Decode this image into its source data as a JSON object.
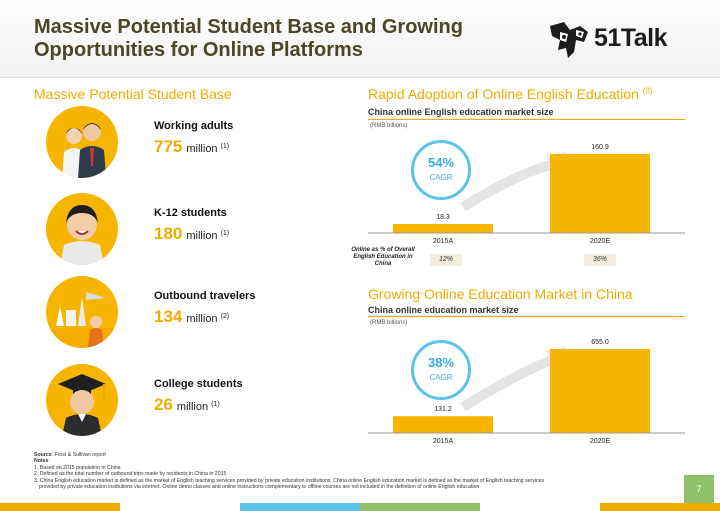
{
  "slide": {
    "title_line1": "Massive Potential Student Base and Growing",
    "title_line2": "Opportunities for Online Platforms",
    "brand": "51Talk",
    "page_number": "7"
  },
  "left": {
    "heading": "Massive Potential Student Base",
    "segments": [
      {
        "name": "Working adults",
        "value": "775",
        "unit": "million",
        "note": "(1)"
      },
      {
        "name": "K-12 students",
        "value": "180",
        "unit": "million",
        "note": "(1)"
      },
      {
        "name": "Outbound travelers",
        "value": "134",
        "unit": "million",
        "note": "(2)"
      },
      {
        "name": "College students",
        "value": "26",
        "unit": "million",
        "note": "(1)"
      }
    ]
  },
  "chart1": {
    "heading": "Rapid Adoption of Online English Education",
    "heading_note": "(3)",
    "subtitle": "China online English education market size",
    "unit": "(RMB billions)",
    "cagr_value": "54%",
    "cagr_label": "CAGR",
    "share_label": "Online as % of Overall English Education in China",
    "share_values": [
      "12%",
      "36%"
    ]
  },
  "chart2": {
    "heading": "Growing Online Education Market in China",
    "subtitle": "China online education market size",
    "unit": "(RMB billions)",
    "cagr_value": "38%",
    "cagr_label": "CAGR"
  },
  "chart_data": [
    {
      "type": "bar",
      "title": "China online English education market size",
      "ylabel": "(RMB billions)",
      "categories": [
        "2015A",
        "2020E"
      ],
      "values": [
        18.3,
        160.9
      ],
      "data_labels": [
        "18.3",
        "160.9"
      ],
      "ylim": [
        0,
        160.9
      ]
    },
    {
      "type": "bar",
      "title": "China online education market size",
      "ylabel": "(RMB billions)",
      "categories": [
        "2015A",
        "2020E"
      ],
      "values": [
        131.2,
        655.0
      ],
      "data_labels": [
        "131.2",
        "655.0"
      ],
      "ylim": [
        0,
        655.0
      ]
    }
  ],
  "footer": {
    "source_label": "Source",
    "source_text": ": Frost & Sullivan report",
    "notes_label": "Notes",
    "notes": [
      "1. Based on 2015 population in China",
      "2. Defined as the total number of outbound trips made by residents in China in 2015",
      "3. China English education market is defined as the market of English teaching services provided by private education institutions. China online English education market is defined as the market of English teaching services",
      "provided by private education institutions via internet. Online demo classes and online instructions complementary to offline courses are not included in the definition of online English education"
    ]
  },
  "colors": {
    "accent": "#f0ab00",
    "bar": "#f7b500",
    "title": "#4b4625",
    "cagr": "#39aedf",
    "page_badge": "#8fc06a"
  }
}
